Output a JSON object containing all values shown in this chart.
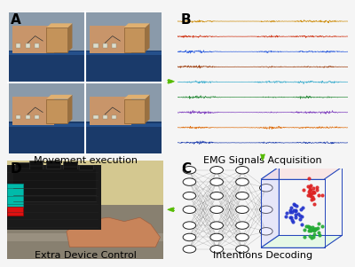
{
  "background_color": "#f5f5f5",
  "panel_labels": [
    "A",
    "B",
    "C",
    "D"
  ],
  "panel_label_fontsize": 11,
  "panel_label_bold": true,
  "captions": {
    "A": "Movement execution",
    "B": "EMG Signals Acquisition",
    "C": "Intentions Decoding",
    "D": "Extra Device Control"
  },
  "caption_fontsize": 8.0,
  "arrow_color": "#55bb00",
  "arrow_fill": "#55bb00",
  "emg_colors": [
    "#cc8800",
    "#cc2200",
    "#2255dd",
    "#993300",
    "#33aacc",
    "#228833",
    "#7733bb",
    "#dd6600",
    "#1133aa"
  ],
  "emg_num_channels": 9,
  "scatter_colors": {
    "red": "#dd2222",
    "blue": "#2233cc",
    "green": "#22aa33"
  },
  "nn_node_color": "#ffffff",
  "nn_node_edge_color": "#222222",
  "nn_line_color": "#222222",
  "panel_A_bg": "#b0a090",
  "panel_D_bg": "#c8c0a0",
  "grid_plane_alpha": 0.35
}
